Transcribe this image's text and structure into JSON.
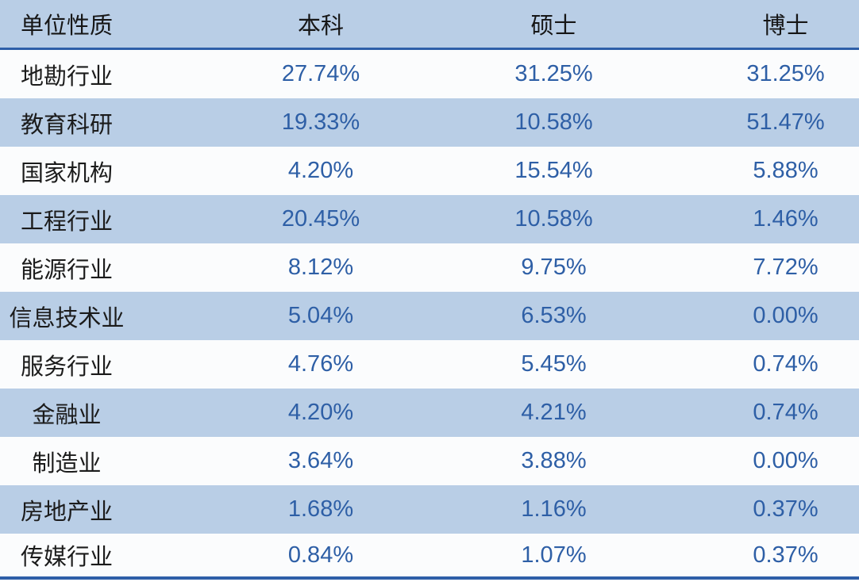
{
  "table": {
    "columns": [
      "单位性质",
      "本科",
      "硕士",
      "博士"
    ],
    "rows": [
      {
        "label": "地勘行业",
        "values": [
          "27.74%",
          "31.25%",
          "31.25%"
        ]
      },
      {
        "label": "教育科研",
        "values": [
          "19.33%",
          "10.58%",
          "51.47%"
        ]
      },
      {
        "label": "国家机构",
        "values": [
          "4.20%",
          "15.54%",
          "5.88%"
        ]
      },
      {
        "label": "工程行业",
        "values": [
          "20.45%",
          "10.58%",
          "1.46%"
        ]
      },
      {
        "label": "能源行业",
        "values": [
          "8.12%",
          "9.75%",
          "7.72%"
        ]
      },
      {
        "label": "信息技术业",
        "values": [
          "5.04%",
          "6.53%",
          "0.00%"
        ]
      },
      {
        "label": "服务行业",
        "values": [
          "4.76%",
          "5.45%",
          "0.74%"
        ]
      },
      {
        "label": "金融业",
        "values": [
          "4.20%",
          "4.21%",
          "0.74%"
        ]
      },
      {
        "label": "制造业",
        "values": [
          "3.64%",
          "3.88%",
          "0.00%"
        ]
      },
      {
        "label": "房地产业",
        "values": [
          "1.68%",
          "1.16%",
          "0.37%"
        ]
      },
      {
        "label": "传媒行业",
        "values": [
          "0.84%",
          "1.07%",
          "0.37%"
        ]
      }
    ]
  },
  "colors": {
    "band_background": "#b9cee6",
    "plain_background": "#fbfcfd",
    "rule_blue": "#2e5fa8",
    "value_text": "#2e5fa6",
    "label_text": "#1b1b1b"
  },
  "chart_data": {
    "type": "table",
    "columns": [
      "单位性质",
      "本科",
      "硕士",
      "博士"
    ],
    "categories": [
      "地勘行业",
      "教育科研",
      "国家机构",
      "工程行业",
      "能源行业",
      "信息技术业",
      "服务行业",
      "金融业",
      "制造业",
      "房地产业",
      "传媒行业"
    ],
    "series": [
      {
        "name": "本科",
        "values": [
          27.74,
          19.33,
          4.2,
          20.45,
          8.12,
          5.04,
          4.76,
          4.2,
          3.64,
          1.68,
          0.84
        ]
      },
      {
        "name": "硕士",
        "values": [
          31.25,
          10.58,
          15.54,
          10.58,
          9.75,
          6.53,
          5.45,
          4.21,
          3.88,
          1.16,
          1.07
        ]
      },
      {
        "name": "博士",
        "values": [
          31.25,
          51.47,
          5.88,
          1.46,
          7.72,
          0.0,
          0.74,
          0.74,
          0.0,
          0.37,
          0.37
        ]
      }
    ],
    "unit": "%",
    "layout": "banded rows, header rule and bottom rule in dark blue"
  }
}
